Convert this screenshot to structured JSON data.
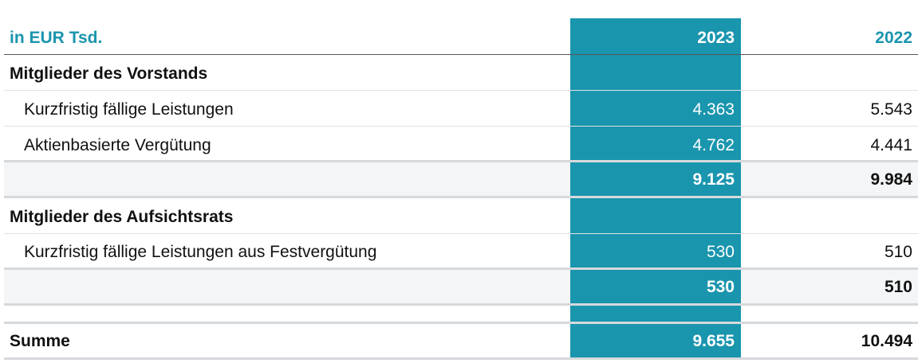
{
  "table": {
    "unit_label": "in EUR Tsd.",
    "col_2023": "2023",
    "col_2022": "2022",
    "vorstand": {
      "title": "Mitglieder des Vorstands",
      "rows": [
        {
          "label": "Kurzfristig fällige Leistungen",
          "v2023": "4.363",
          "v2022": "5.543"
        },
        {
          "label": "Aktienbasierte Vergütung",
          "v2023": "4.762",
          "v2022": "4.441"
        }
      ],
      "subtotal": {
        "v2023": "9.125",
        "v2022": "9.984"
      }
    },
    "aufsichtsrat": {
      "title": "Mitglieder des Aufsichtsrats",
      "rows": [
        {
          "label": "Kurzfristig fällige Leistungen aus Festvergütung",
          "v2023": "530",
          "v2022": "510"
        }
      ],
      "subtotal": {
        "v2023": "530",
        "v2022": "510"
      }
    },
    "summe": {
      "label": "Summe",
      "v2023": "9.655",
      "v2022": "10.494"
    },
    "colors": {
      "accent": "#1A95AE"
    }
  }
}
